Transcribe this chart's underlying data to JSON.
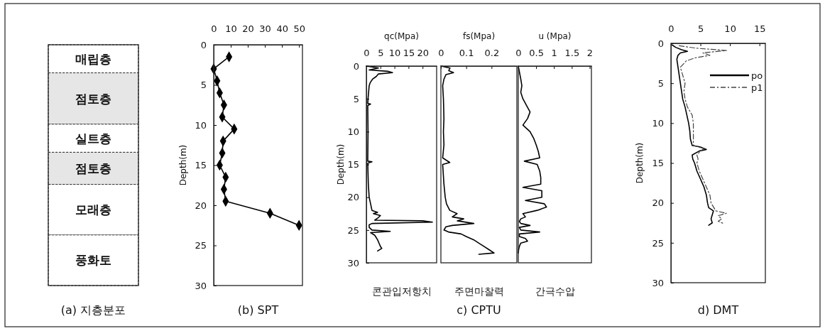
{
  "chart_data": [
    {
      "type": "bar",
      "stacked": true,
      "title": "(a) 지층분포",
      "categories": [
        null
      ],
      "ylim": [
        30,
        0
      ],
      "tick_labels": false,
      "series": [
        {
          "name": "매립층",
          "color": "#ffffff",
          "values": [
            3.5
          ]
        },
        {
          "name": "점토층",
          "color": "#e6e6e6",
          "values": [
            6.4
          ]
        },
        {
          "name": "실트층",
          "color": "#ffffff",
          "values": [
            3.5
          ]
        },
        {
          "name": "점토층",
          "color": "#e6e6e6",
          "values": [
            4.0
          ]
        },
        {
          "name": "모래층",
          "color": "#ffffff",
          "values": [
            6.3
          ]
        },
        {
          "name": "풍화토",
          "color": "#ffffff",
          "values": [
            6.3
          ]
        }
      ]
    },
    {
      "type": "line",
      "title": "(b) SPT",
      "ylabel": "Depth(m)",
      "marker": "diamond",
      "xlim": [
        0,
        52
      ],
      "xticks": [
        0,
        10,
        20,
        30,
        40,
        50
      ],
      "ylim": [
        30,
        0
      ],
      "yticks": [
        0,
        5,
        10,
        15,
        20,
        25,
        30
      ],
      "series": [
        {
          "color": "#000000",
          "x": [
            9,
            0,
            2,
            3.5,
            6,
            5,
            12,
            5.5,
            5,
            3.5,
            7,
            6,
            7,
            33,
            50
          ],
          "values": [
            1.5,
            3,
            4.5,
            6,
            7.5,
            9,
            10.5,
            12,
            13.5,
            15,
            16.5,
            18,
            19.5,
            21,
            22.5
          ]
        }
      ]
    },
    {
      "type": "line",
      "xlabel": "qc(Mpa)",
      "ylabel": "Depth(m)",
      "annotations": [
        "콘관입저항치"
      ],
      "xlim": [
        0,
        25
      ],
      "xticks": [
        0,
        5,
        10,
        15,
        20
      ],
      "ylim": [
        30,
        0
      ],
      "yticks": [
        0,
        5,
        10,
        15,
        20,
        25,
        30
      ],
      "series": [
        {
          "color": "#000000",
          "x": [
            0,
            4.3,
            1,
            7.6,
            9.3,
            4.3,
            3.5,
            2.2,
            1.4,
            1,
            0.6,
            0.5,
            1.5,
            0.5,
            0.6,
            0.5,
            2,
            0.5,
            0.7,
            1,
            1.5,
            2,
            4,
            2.5,
            5,
            4,
            3,
            20,
            23.5,
            2,
            1,
            1,
            2,
            8.5,
            1.5,
            3,
            4,
            4.5,
            5,
            5.5,
            4
          ],
          "values": [
            0,
            0.3,
            0.6,
            0.8,
            1,
            1.2,
            1.6,
            2,
            2.5,
            3,
            5,
            5.7,
            5.8,
            6,
            10,
            14.5,
            14.6,
            14.8,
            18,
            20,
            21,
            22,
            22.3,
            22.5,
            22.8,
            23.2,
            23.5,
            23.6,
            23.8,
            24,
            24.2,
            24.6,
            25,
            25.2,
            25.4,
            25.8,
            26.5,
            27,
            27.5,
            27.8,
            28.2
          ]
        }
      ]
    },
    {
      "type": "line",
      "xlabel": "fs(Mpa)",
      "title": "c) CPTU",
      "annotations": [
        "주면마찰력"
      ],
      "xlim": [
        0,
        0.3
      ],
      "xticks": [
        0,
        0.1,
        0.2
      ],
      "ylim": [
        30,
        0
      ],
      "tick_labels": "x",
      "series": [
        {
          "color": "#000000",
          "x": [
            0,
            0.036,
            0.031,
            0.05,
            0.02,
            0.012,
            0.007,
            0.01,
            0.012,
            0.01,
            0.012,
            0.007,
            0.035,
            0.007,
            0.012,
            0.017,
            0.022,
            0.035,
            0.064,
            0.045,
            0.09,
            0.065,
            0.13,
            0.045,
            0.02,
            0.012,
            0.03,
            0.08,
            0.1,
            0.13,
            0.15,
            0.17,
            0.19,
            0.21,
            0.15
          ],
          "values": [
            0,
            0.3,
            0.7,
            1,
            1.3,
            2,
            3,
            5,
            8,
            10,
            12,
            14,
            14.7,
            15,
            18,
            20,
            21,
            22,
            22.5,
            23,
            23.3,
            23.6,
            24,
            24.3,
            24.5,
            25,
            25.3,
            25.6,
            26,
            26.5,
            27,
            27.5,
            28,
            28.5,
            28.7
          ]
        }
      ]
    },
    {
      "type": "line",
      "xlabel": "u (Mpa)",
      "annotations": [
        "간극수압"
      ],
      "xlim": [
        0,
        2.05
      ],
      "xticks": [
        0,
        0.5,
        1,
        1.5,
        2
      ],
      "ylim": [
        30,
        0
      ],
      "tick_labels": "x",
      "series": [
        {
          "color": "#000000",
          "x": [
            0,
            0.07,
            0.1,
            0.07,
            0.13,
            0.23,
            0.33,
            0.26,
            0.13,
            0.33,
            0.43,
            0.5,
            0.56,
            0.6,
            0.17,
            0.53,
            0.6,
            0.63,
            0.63,
            0.13,
            0.66,
            0.66,
            0.2,
            0.73,
            0.79,
            0.53,
            0.13,
            0.2,
            0.07,
            0.03,
            0.07,
            0.33,
            0.03,
            0.07,
            0.6,
            0.03,
            0.03,
            0.2,
            0.26,
            0.07,
            0.03,
            0.01,
            0
          ],
          "values": [
            0,
            2,
            3,
            4,
            5,
            6,
            7,
            8,
            9,
            10,
            11,
            12,
            13,
            14,
            14.5,
            15,
            16,
            17,
            18,
            18.5,
            19,
            20,
            20.5,
            21,
            21.5,
            22,
            22.5,
            23,
            23.3,
            23.7,
            24,
            24.3,
            24.6,
            25,
            25.3,
            25.6,
            26,
            26.3,
            26.7,
            27,
            27.5,
            28,
            28.5
          ]
        }
      ]
    },
    {
      "type": "line",
      "title": "d) DMT",
      "ylabel": "Depth(m)",
      "legend": "top right",
      "xlim": [
        0,
        16
      ],
      "xticks": [
        0,
        5,
        10,
        15
      ],
      "ylim": [
        30,
        0
      ],
      "yticks": [
        0,
        5,
        10,
        15,
        20,
        25,
        30
      ],
      "series": [
        {
          "name": "po",
          "color": "#000000",
          "line_style": "solid",
          "x": [
            0.2,
            0.8,
            1.8,
            2.8,
            1.6,
            1.2,
            1,
            1.2,
            1.4,
            1.6,
            1.8,
            2,
            2.4,
            2.7,
            3,
            3.2,
            3.3,
            3.6,
            5,
            6,
            4.8,
            3.6,
            3.7,
            4,
            4.4,
            5,
            5.6,
            6,
            6.2,
            6.4,
            7.2,
            7,
            6.8,
            7,
            6.4
          ],
          "values": [
            0.2,
            0.5,
            0.8,
            1,
            1.2,
            1.5,
            2,
            3,
            4,
            5,
            6,
            7,
            8,
            9,
            10,
            11,
            12,
            12.8,
            13,
            13.3,
            13.5,
            14,
            14.5,
            15,
            16,
            17,
            18,
            19,
            20,
            20.6,
            21,
            21.5,
            22,
            22.5,
            22.8
          ]
        },
        {
          "name": "p1",
          "color": "#444444",
          "line_style": "dashed",
          "x": [
            1.4,
            4.2,
            9.4,
            5.4,
            6.6,
            4.2,
            2.6,
            1.6,
            2,
            2.4,
            2.2,
            2.4,
            2.8,
            3.6,
            3.8,
            3.8,
            3.8,
            3.8,
            5.6,
            5,
            4.4,
            4.6,
            4.4,
            4.8,
            5.4,
            6,
            6.6,
            6.8,
            7.6,
            9.4,
            8,
            8.6,
            8,
            9
          ],
          "values": [
            0.3,
            0.6,
            0.9,
            1.2,
            1.5,
            1.8,
            2.2,
            3,
            4,
            5,
            6,
            7,
            8,
            9,
            10,
            11,
            12,
            12.8,
            13.2,
            13.5,
            14,
            14.5,
            15,
            16,
            17,
            18,
            19,
            20,
            21,
            21.3,
            21.6,
            22,
            22.3,
            22.6
          ]
        }
      ]
    }
  ]
}
